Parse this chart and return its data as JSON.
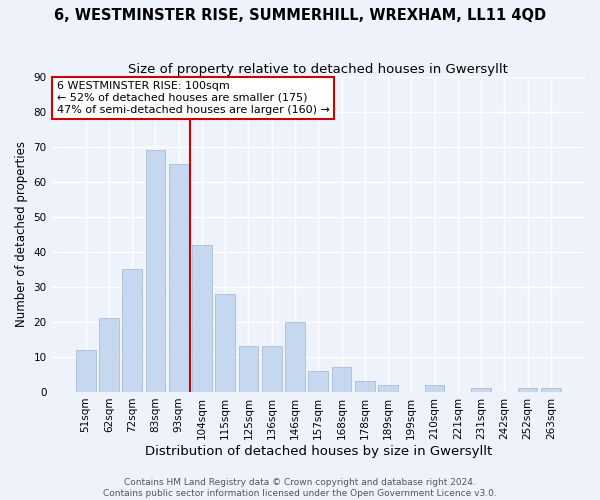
{
  "title1": "6, WESTMINSTER RISE, SUMMERHILL, WREXHAM, LL11 4QD",
  "title2": "Size of property relative to detached houses in Gwersyllt",
  "xlabel": "Distribution of detached houses by size in Gwersyllt",
  "ylabel": "Number of detached properties",
  "categories": [
    "51sqm",
    "62sqm",
    "72sqm",
    "83sqm",
    "93sqm",
    "104sqm",
    "115sqm",
    "125sqm",
    "136sqm",
    "146sqm",
    "157sqm",
    "168sqm",
    "178sqm",
    "189sqm",
    "199sqm",
    "210sqm",
    "221sqm",
    "231sqm",
    "242sqm",
    "252sqm",
    "263sqm"
  ],
  "values": [
    12,
    21,
    35,
    69,
    65,
    42,
    28,
    13,
    13,
    20,
    6,
    7,
    3,
    2,
    0,
    2,
    0,
    1,
    0,
    1,
    1
  ],
  "bar_color": "#c5d8f0",
  "bar_edge_color": "#a0b8d0",
  "vline_x": 4.5,
  "vline_color": "#cc0000",
  "annotation_line1": "6 WESTMINSTER RISE: 100sqm",
  "annotation_line2": "← 52% of detached houses are smaller (175)",
  "annotation_line3": "47% of semi-detached houses are larger (160) →",
  "annotation_box_color": "#ffffff",
  "annotation_box_edge_color": "#cc0000",
  "ylim": [
    0,
    90
  ],
  "yticks": [
    0,
    10,
    20,
    30,
    40,
    50,
    60,
    70,
    80,
    90
  ],
  "footer_text": "Contains HM Land Registry data © Crown copyright and database right 2024.\nContains public sector information licensed under the Open Government Licence v3.0.",
  "background_color": "#eef2fa",
  "grid_color": "#ffffff",
  "title1_fontsize": 10.5,
  "title2_fontsize": 9.5,
  "xlabel_fontsize": 9.5,
  "ylabel_fontsize": 8.5,
  "tick_fontsize": 7.5,
  "annotation_fontsize": 8,
  "footer_fontsize": 6.5
}
